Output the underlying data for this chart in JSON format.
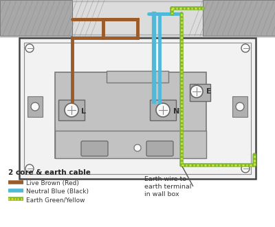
{
  "bg_color": "#ffffff",
  "wall_gray": "#a8a8a8",
  "conduit_bg": "#d0d0d0",
  "box_face": "#f2f2f2",
  "socket_gray": "#c2c2c2",
  "socket_dark": "#b0b0b0",
  "line_dark": "#444444",
  "brown_wire": "#9b5c2a",
  "blue_wire": "#52b8d8",
  "earth_green": "#7db832",
  "earth_yellow": "#e8e020",
  "screw_white": "#f8f8f8",
  "title_bold": "2 core & earth cable",
  "leg1": "Live Brown (Red)",
  "leg2": "Neutral Blue (Black)",
  "leg3": "Earth Green/Yellow",
  "ann1": "Earth wire to",
  "ann2": "earth terminal",
  "ann3": "in wall box",
  "lbl_L": "L",
  "lbl_N": "N",
  "lbl_E": "E"
}
